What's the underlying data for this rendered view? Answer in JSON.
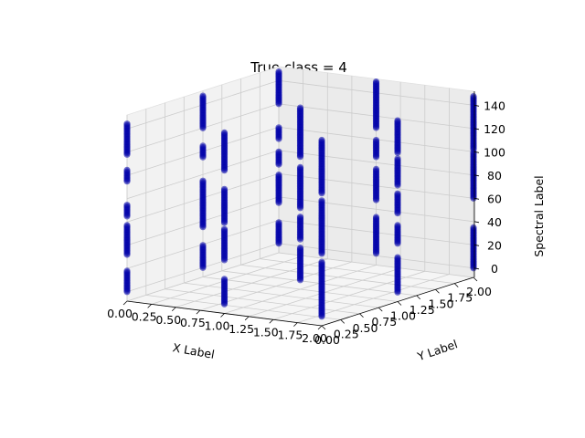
{
  "chart_data": {
    "type": "scatter",
    "title": "True class = 4",
    "xlabel": "X Label",
    "ylabel": "Y Label",
    "zlabel": "Spectral Label",
    "x_ticks": [
      "0.00",
      "0.25",
      "0.50",
      "0.75",
      "1.00",
      "1.25",
      "1.50",
      "1.75",
      "2.00"
    ],
    "y_ticks": [
      "0.00",
      "0.25",
      "0.50",
      "0.75",
      "1.00",
      "1.25",
      "1.50",
      "1.75",
      "2.00"
    ],
    "z_ticks": [
      "0",
      "20",
      "40",
      "60",
      "80",
      "100",
      "120",
      "140"
    ],
    "xlim": [
      0,
      2
    ],
    "ylim": [
      0,
      2
    ],
    "zlim": [
      -8,
      152
    ],
    "grid": true,
    "marker_color": "#0000aa",
    "series": [
      {
        "x": 0,
        "y": 0,
        "z_ranges": [
          [
            0,
            18
          ],
          [
            32,
            58
          ],
          [
            65,
            75
          ],
          [
            95,
            105
          ],
          [
            118,
            145
          ]
        ]
      },
      {
        "x": 0,
        "y": 1,
        "z_ranges": [
          [
            0,
            20
          ],
          [
            35,
            75
          ],
          [
            95,
            105
          ],
          [
            120,
            148
          ]
        ]
      },
      {
        "x": 0,
        "y": 2,
        "z_ranges": [
          [
            0,
            18
          ],
          [
            35,
            60
          ],
          [
            68,
            80
          ],
          [
            90,
            100
          ],
          [
            120,
            148
          ]
        ]
      },
      {
        "x": 1,
        "y": 0,
        "z_ranges": [
          [
            0,
            22
          ],
          [
            38,
            65
          ],
          [
            70,
            100
          ],
          [
            115,
            148
          ]
        ]
      },
      {
        "x": 1,
        "y": 1,
        "z_ranges": [
          [
            0,
            28
          ],
          [
            35,
            55
          ],
          [
            62,
            98
          ],
          [
            106,
            148
          ]
        ]
      },
      {
        "x": 1,
        "y": 2,
        "z_ranges": [
          [
            2,
            34
          ],
          [
            48,
            75
          ],
          [
            85,
            100
          ],
          [
            110,
            150
          ]
        ]
      },
      {
        "x": 2,
        "y": 0,
        "z_ranges": [
          [
            0,
            48
          ],
          [
            54,
            100
          ],
          [
            106,
            152
          ]
        ]
      },
      {
        "x": 2,
        "y": 1,
        "z_ranges": [
          [
            0,
            30
          ],
          [
            42,
            58
          ],
          [
            68,
            85
          ],
          [
            92,
            115
          ],
          [
            120,
            148
          ]
        ]
      },
      {
        "x": 2,
        "y": 2,
        "z_ranges": [
          [
            0,
            35
          ],
          [
            60,
            100
          ],
          [
            102,
            148
          ]
        ]
      }
    ]
  }
}
